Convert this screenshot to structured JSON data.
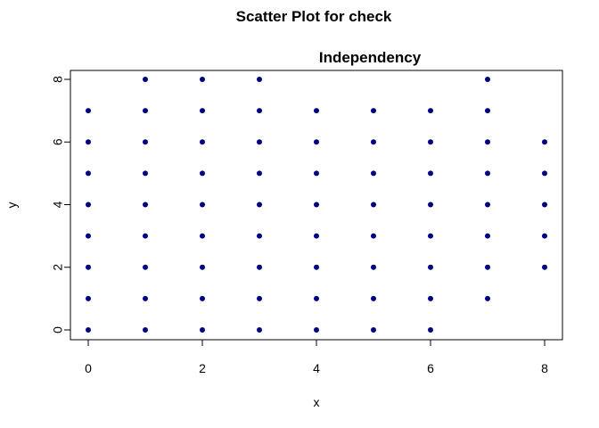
{
  "chart_data": {
    "type": "scatter",
    "title": "Scatter Plot for check",
    "subtitle": "Independency",
    "xlabel": "x",
    "ylabel": "y",
    "xlim": [
      0,
      8
    ],
    "ylim": [
      0,
      8
    ],
    "x_ticks": [
      0,
      2,
      4,
      6,
      8
    ],
    "y_ticks": [
      0,
      2,
      4,
      6,
      8
    ],
    "x_tick_labels": [
      "0",
      "2",
      "4",
      "6",
      "8"
    ],
    "y_tick_labels": [
      "0",
      "2",
      "4",
      "6",
      "8"
    ],
    "grid": false,
    "point_color": "#000080",
    "points": [
      {
        "x": 0,
        "y": 0
      },
      {
        "x": 0,
        "y": 1
      },
      {
        "x": 0,
        "y": 2
      },
      {
        "x": 0,
        "y": 3
      },
      {
        "x": 0,
        "y": 4
      },
      {
        "x": 0,
        "y": 5
      },
      {
        "x": 0,
        "y": 6
      },
      {
        "x": 0,
        "y": 7
      },
      {
        "x": 1,
        "y": 0
      },
      {
        "x": 1,
        "y": 1
      },
      {
        "x": 1,
        "y": 2
      },
      {
        "x": 1,
        "y": 3
      },
      {
        "x": 1,
        "y": 4
      },
      {
        "x": 1,
        "y": 5
      },
      {
        "x": 1,
        "y": 6
      },
      {
        "x": 1,
        "y": 7
      },
      {
        "x": 1,
        "y": 8
      },
      {
        "x": 2,
        "y": 0
      },
      {
        "x": 2,
        "y": 1
      },
      {
        "x": 2,
        "y": 2
      },
      {
        "x": 2,
        "y": 3
      },
      {
        "x": 2,
        "y": 4
      },
      {
        "x": 2,
        "y": 5
      },
      {
        "x": 2,
        "y": 6
      },
      {
        "x": 2,
        "y": 7
      },
      {
        "x": 2,
        "y": 8
      },
      {
        "x": 3,
        "y": 0
      },
      {
        "x": 3,
        "y": 1
      },
      {
        "x": 3,
        "y": 2
      },
      {
        "x": 3,
        "y": 3
      },
      {
        "x": 3,
        "y": 4
      },
      {
        "x": 3,
        "y": 5
      },
      {
        "x": 3,
        "y": 6
      },
      {
        "x": 3,
        "y": 7
      },
      {
        "x": 3,
        "y": 8
      },
      {
        "x": 4,
        "y": 0
      },
      {
        "x": 4,
        "y": 1
      },
      {
        "x": 4,
        "y": 2
      },
      {
        "x": 4,
        "y": 3
      },
      {
        "x": 4,
        "y": 4
      },
      {
        "x": 4,
        "y": 5
      },
      {
        "x": 4,
        "y": 6
      },
      {
        "x": 4,
        "y": 7
      },
      {
        "x": 5,
        "y": 0
      },
      {
        "x": 5,
        "y": 1
      },
      {
        "x": 5,
        "y": 2
      },
      {
        "x": 5,
        "y": 3
      },
      {
        "x": 5,
        "y": 4
      },
      {
        "x": 5,
        "y": 5
      },
      {
        "x": 5,
        "y": 6
      },
      {
        "x": 5,
        "y": 7
      },
      {
        "x": 6,
        "y": 0
      },
      {
        "x": 6,
        "y": 1
      },
      {
        "x": 6,
        "y": 2
      },
      {
        "x": 6,
        "y": 3
      },
      {
        "x": 6,
        "y": 4
      },
      {
        "x": 6,
        "y": 5
      },
      {
        "x": 6,
        "y": 6
      },
      {
        "x": 6,
        "y": 7
      },
      {
        "x": 7,
        "y": 1
      },
      {
        "x": 7,
        "y": 2
      },
      {
        "x": 7,
        "y": 3
      },
      {
        "x": 7,
        "y": 4
      },
      {
        "x": 7,
        "y": 5
      },
      {
        "x": 7,
        "y": 6
      },
      {
        "x": 7,
        "y": 7
      },
      {
        "x": 7,
        "y": 8
      },
      {
        "x": 8,
        "y": 2
      },
      {
        "x": 8,
        "y": 3
      },
      {
        "x": 8,
        "y": 4
      },
      {
        "x": 8,
        "y": 5
      },
      {
        "x": 8,
        "y": 6
      }
    ]
  }
}
